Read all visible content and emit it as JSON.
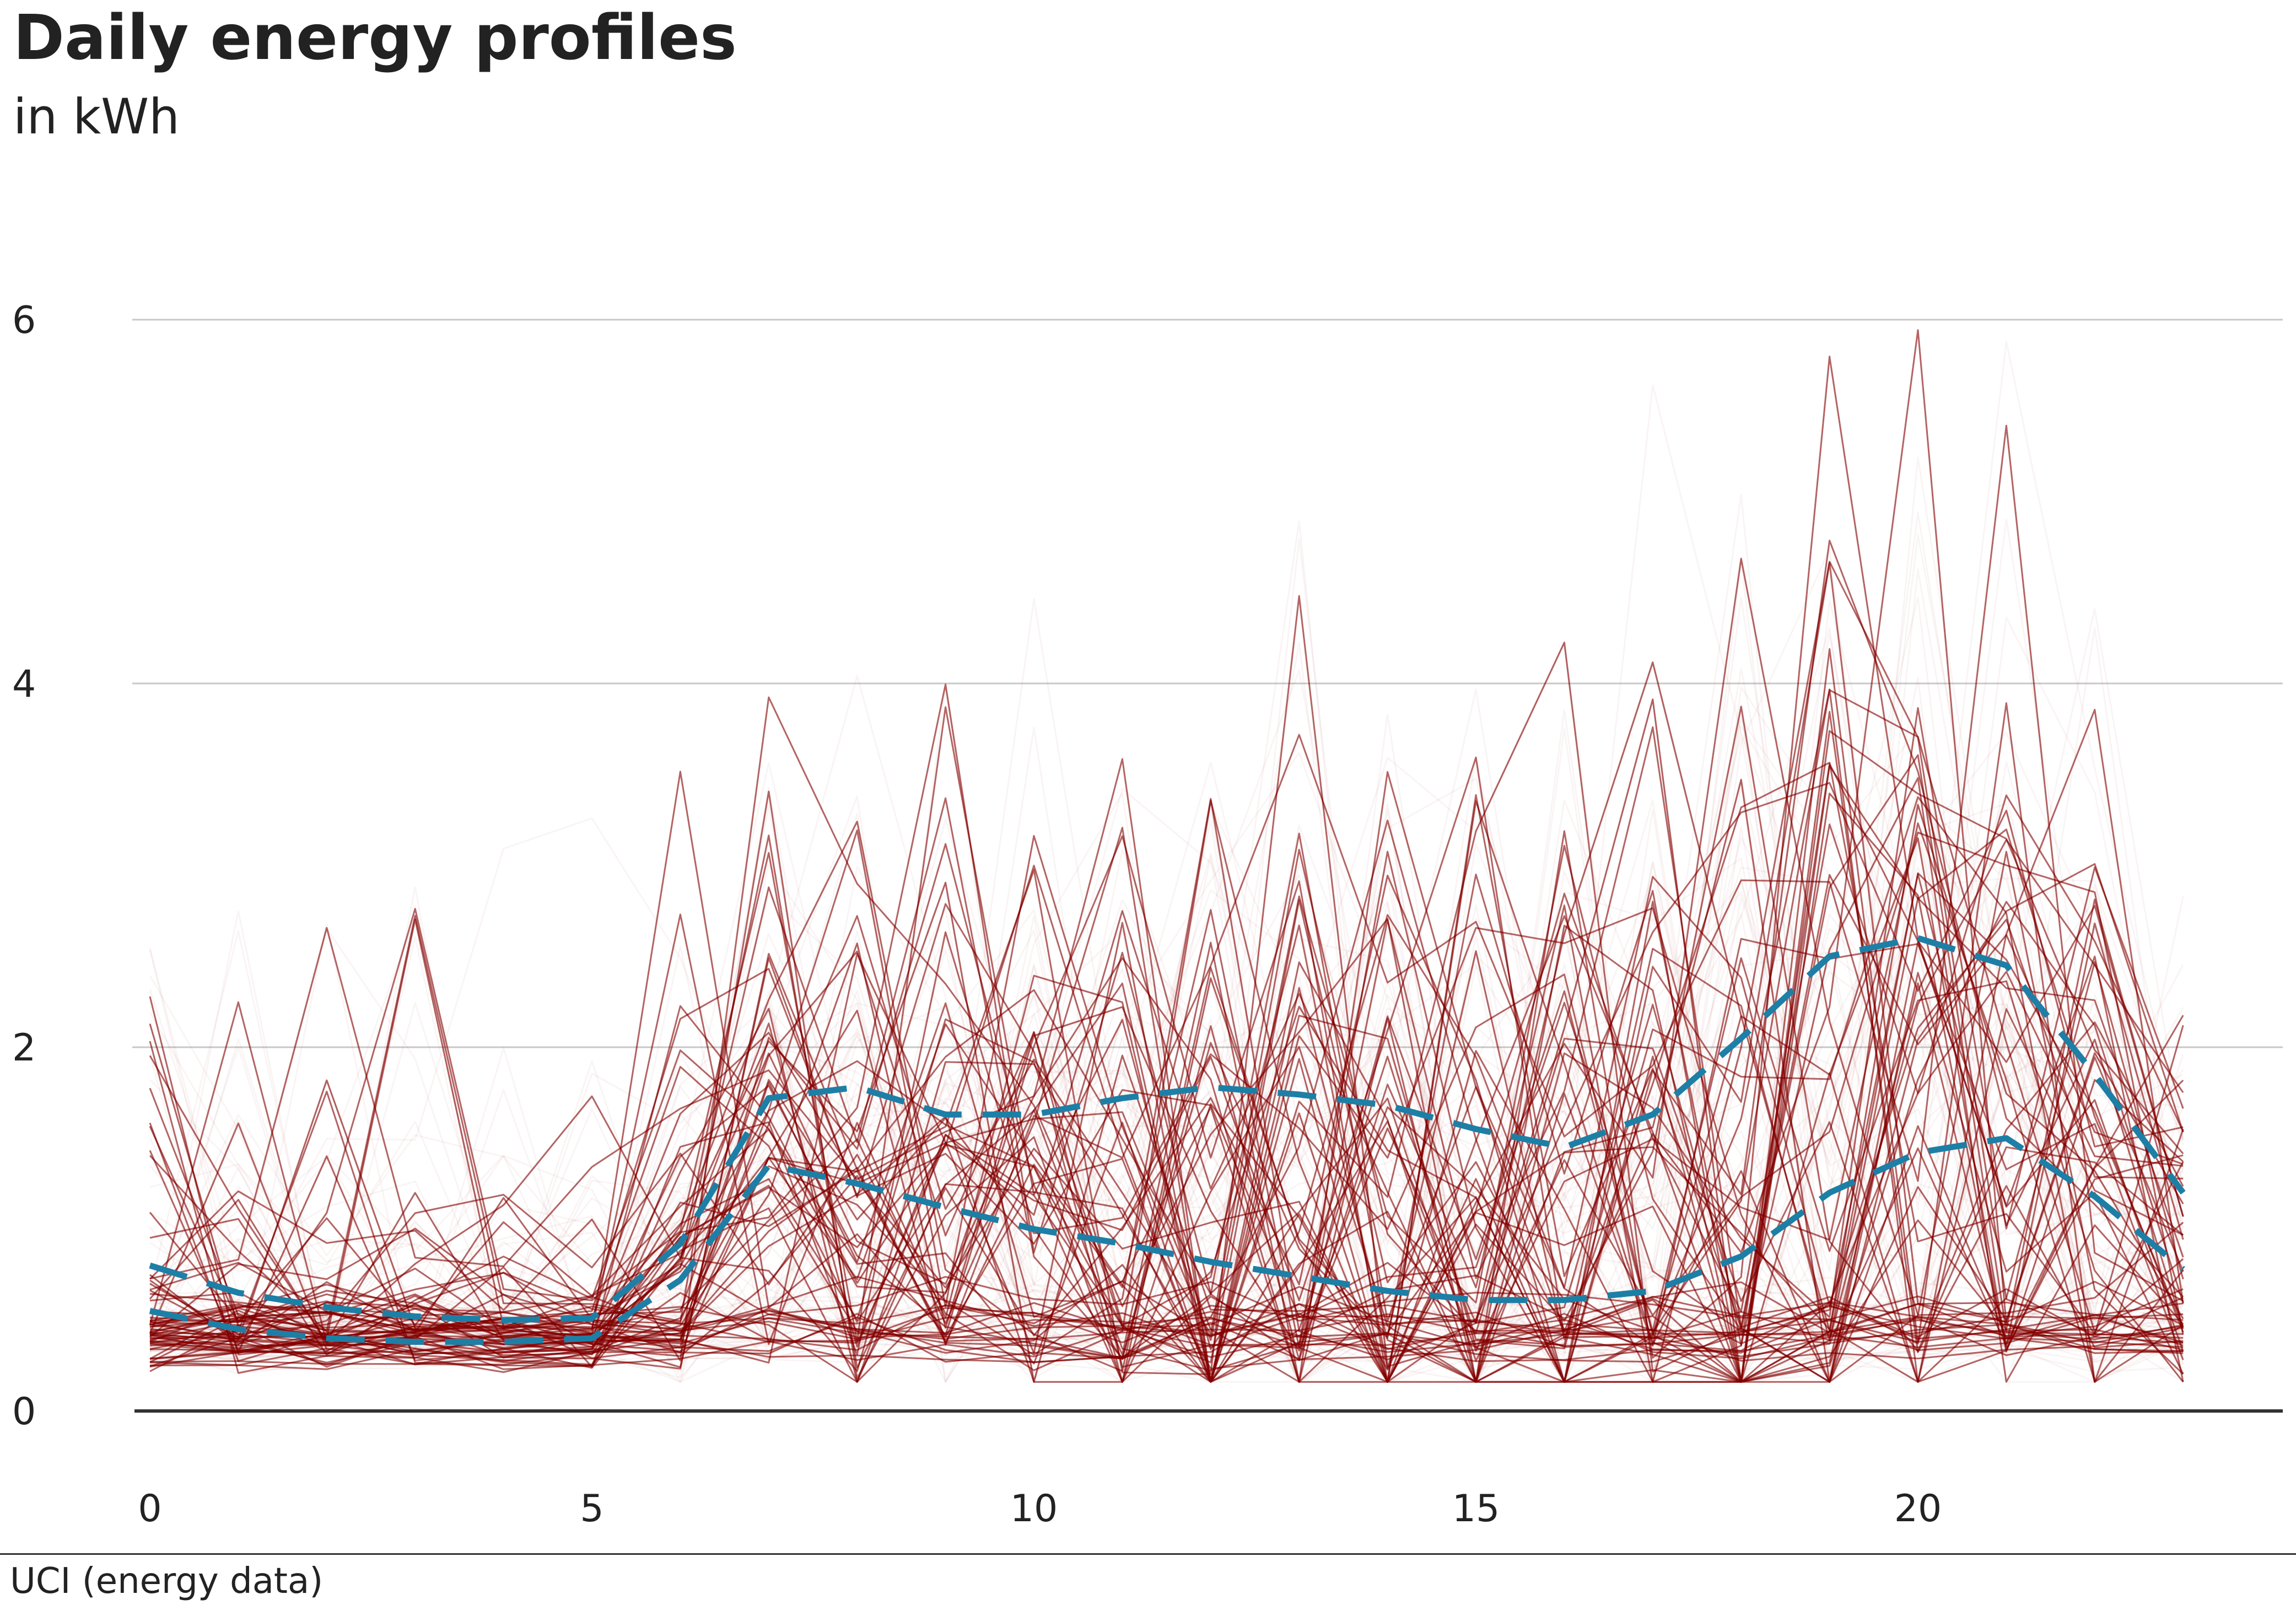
{
  "title": "Daily energy profiles",
  "subtitle": "in kWh",
  "source": "UCI (energy data)",
  "colors": {
    "profiles": "#8b0a0a",
    "quantiles": "#1d7fa6",
    "grid": "#c8c8c8",
    "baseline": "#333333"
  },
  "chart_data": {
    "type": "line",
    "x": [
      0,
      1,
      2,
      3,
      4,
      5,
      6,
      7,
      8,
      9,
      10,
      11,
      12,
      13,
      14,
      15,
      16,
      17,
      18,
      19,
      20,
      21,
      22,
      23
    ],
    "xlim": [
      0,
      24
    ],
    "ylim": [
      0,
      6.8
    ],
    "x_ticks": [
      0,
      5,
      10,
      15,
      20
    ],
    "y_ticks": [
      0,
      2,
      4,
      6
    ],
    "grid": "horizontal",
    "series": [
      {
        "style": "dashed",
        "values": [
          0.8,
          0.65,
          0.57,
          0.52,
          0.5,
          0.51,
          0.92,
          1.72,
          1.78,
          1.63,
          1.63,
          1.72,
          1.78,
          1.74,
          1.68,
          1.55,
          1.45,
          1.63,
          2.05,
          2.5,
          2.6,
          2.45,
          1.85,
          1.2
        ]
      },
      {
        "style": "dashed",
        "values": [
          0.55,
          0.45,
          0.4,
          0.38,
          0.38,
          0.4,
          0.72,
          1.35,
          1.25,
          1.12,
          1.0,
          0.92,
          0.82,
          0.74,
          0.66,
          0.61,
          0.61,
          0.66,
          0.85,
          1.2,
          1.42,
          1.5,
          1.18,
          0.78
        ]
      }
    ],
    "profiles_note": "background: ~1400 semi-transparent daily household profiles"
  }
}
